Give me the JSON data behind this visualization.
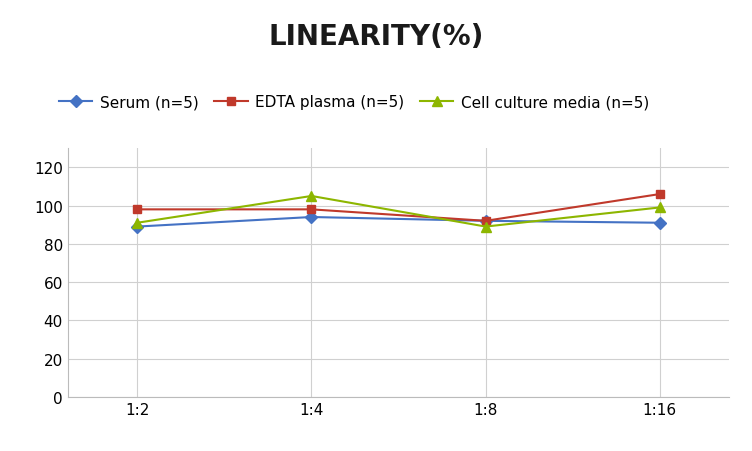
{
  "title": "LINEARITY(%)",
  "x_labels": [
    "1:2",
    "1:4",
    "1:8",
    "1:16"
  ],
  "x_positions": [
    0,
    1,
    2,
    3
  ],
  "series": [
    {
      "label": "Serum (n=5)",
      "values": [
        89,
        94,
        92,
        91
      ],
      "color": "#4472C4",
      "marker": "D",
      "marker_size": 6
    },
    {
      "label": "EDTA plasma (n=5)",
      "values": [
        98,
        98,
        92,
        106
      ],
      "color": "#C0392B",
      "marker": "s",
      "marker_size": 6
    },
    {
      "label": "Cell culture media (n=5)",
      "values": [
        91,
        105,
        89,
        99
      ],
      "color": "#8DB600",
      "marker": "^",
      "marker_size": 7
    }
  ],
  "ylim": [
    0,
    130
  ],
  "yticks": [
    0,
    20,
    40,
    60,
    80,
    100,
    120
  ],
  "background_color": "#ffffff",
  "grid_color": "#d0d0d0",
  "title_fontsize": 20,
  "legend_fontsize": 11,
  "tick_fontsize": 11
}
